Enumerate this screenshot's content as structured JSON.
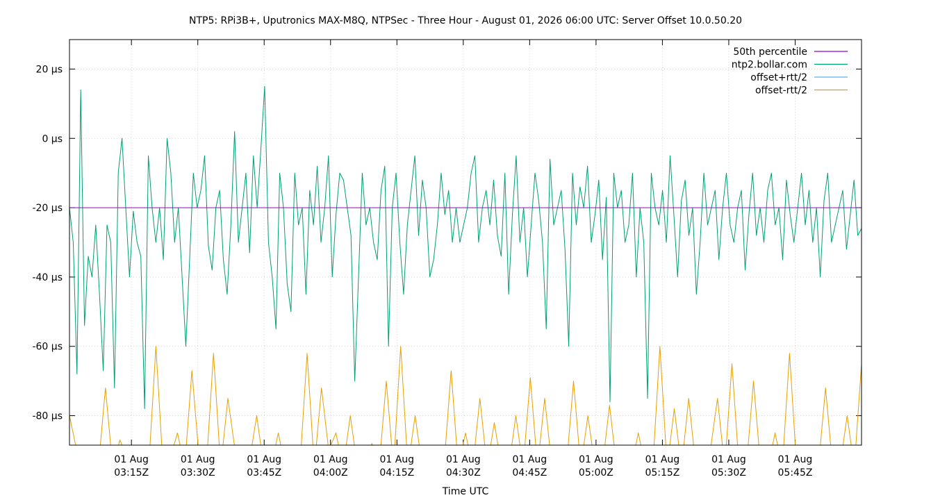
{
  "chart_data": {
    "type": "line",
    "title": "NTP5: RPi3B+, Uputronics MAX-M8Q, NTPSec - Three Hour - August 01, 2026 06:00 UTC: Server Offset 10.0.50.20",
    "xlabel": "Time UTC",
    "ylabel": "",
    "grid": true,
    "legend_position": "top-right",
    "x_range": [
      "2026-08-01T03:01Z",
      "2026-08-01T06:00Z"
    ],
    "ylim": [
      -88.5,
      28.5
    ],
    "y_unit": "µs",
    "y_ticks": [
      {
        "value": 20,
        "label": "20 µs"
      },
      {
        "value": 0,
        "label": "0 µs"
      },
      {
        "value": -20,
        "label": "-20 µs"
      },
      {
        "value": -40,
        "label": "-40 µs"
      },
      {
        "value": -60,
        "label": "-60 µs"
      },
      {
        "value": -80,
        "label": "-80 µs"
      }
    ],
    "x_ticks": [
      {
        "minutes": 15,
        "line1": "01 Aug",
        "line2": "03:15Z"
      },
      {
        "minutes": 30,
        "line1": "01 Aug",
        "line2": "03:30Z"
      },
      {
        "minutes": 45,
        "line1": "01 Aug",
        "line2": "03:45Z"
      },
      {
        "minutes": 60,
        "line1": "01 Aug",
        "line2": "04:00Z"
      },
      {
        "minutes": 75,
        "line1": "01 Aug",
        "line2": "04:15Z"
      },
      {
        "minutes": 90,
        "line1": "01 Aug",
        "line2": "04:30Z"
      },
      {
        "minutes": 105,
        "line1": "01 Aug",
        "line2": "04:45Z"
      },
      {
        "minutes": 120,
        "line1": "01 Aug",
        "line2": "05:00Z"
      },
      {
        "minutes": 135,
        "line1": "01 Aug",
        "line2": "05:15Z"
      },
      {
        "minutes": 150,
        "line1": "01 Aug",
        "line2": "05:30Z"
      },
      {
        "minutes": 165,
        "line1": "01 Aug",
        "line2": "05:45Z"
      }
    ],
    "series": [
      {
        "name": "50th percentile",
        "color": "#9400d3",
        "constant": -20
      },
      {
        "name": "ntp2.bollar.com",
        "color": "#009e73",
        "values": [
          -20,
          -30,
          -68,
          14,
          -54,
          -34,
          -40,
          -25,
          -45,
          -67,
          -25,
          -30,
          -72,
          -10,
          0,
          -20,
          -40,
          -21,
          -30,
          -34,
          -78,
          -5,
          -20,
          -30,
          -20,
          -35,
          0,
          -10,
          -30,
          -20,
          -40,
          -60,
          -35,
          -10,
          -20,
          -15,
          -5,
          -31,
          -38,
          -20,
          -15,
          -35,
          -45,
          -25,
          2,
          -30,
          -20,
          -10,
          -33,
          -5,
          -20,
          -3,
          15,
          -30,
          -40,
          -55,
          -10,
          -20,
          -42,
          -50,
          -10,
          -25,
          -20,
          -45,
          -15,
          -25,
          -8,
          -30,
          -20,
          -5,
          -40,
          -22,
          -10,
          -12,
          -20,
          -28,
          -70,
          -40,
          -10,
          -25,
          -20,
          -30,
          -35,
          -15,
          -8,
          -60,
          -20,
          -10,
          -30,
          -45,
          -25,
          -15,
          -5,
          -28,
          -12,
          -20,
          -40,
          -35,
          -25,
          -10,
          -22,
          -15,
          -30,
          -20,
          -30,
          -25,
          -20,
          -10,
          -5,
          -30,
          -20,
          -15,
          -25,
          -12,
          -28,
          -34,
          -10,
          -45,
          -22,
          -5,
          -30,
          -20,
          -40,
          -25,
          -10,
          -18,
          -30,
          -55,
          -6,
          -25,
          -20,
          -15,
          -32,
          -60,
          -10,
          -25,
          -14,
          -20,
          -8,
          -30,
          -22,
          -12,
          -35,
          -17,
          -76,
          -10,
          -20,
          -15,
          -30,
          -25,
          -10,
          -40,
          -20,
          -30,
          -75,
          -10,
          -20,
          -25,
          -15,
          -30,
          -5,
          -22,
          -40,
          -18,
          -12,
          -28,
          -20,
          -45,
          -30,
          -10,
          -25,
          -20,
          -15,
          -35,
          -20,
          -10,
          -25,
          -30,
          -20,
          -15,
          -38,
          -22,
          -10,
          -28,
          -20,
          -30,
          -15,
          -10,
          -25,
          -20,
          -35,
          -12,
          -22,
          -30,
          -20,
          -10,
          -25,
          -15,
          -30,
          -20,
          -40,
          -18,
          -10,
          -30,
          -25,
          -20,
          -15,
          -32,
          -22,
          -12,
          -28,
          -26
        ]
      },
      {
        "name": "offset+rtt/2",
        "color": "#56b4e9"
      },
      {
        "name": "offset-rtt/2",
        "color": "#e69f00",
        "values": [
          -80,
          -90,
          -95,
          -92,
          -95,
          -72,
          -95,
          -87,
          -92,
          -95,
          -90,
          -95,
          -60,
          -95,
          -92,
          -85,
          -95,
          -67,
          -92,
          -95,
          -62,
          -95,
          -75,
          -90,
          -95,
          -93,
          -80,
          -95,
          -95,
          -85,
          -95,
          -92,
          -95,
          -62,
          -95,
          -72,
          -90,
          -85,
          -95,
          -80,
          -95,
          -95,
          -88,
          -95,
          -70,
          -95,
          -60,
          -95,
          -80,
          -95,
          -95,
          -90,
          -95,
          -67,
          -95,
          -85,
          -95,
          -75,
          -95,
          -82,
          -95,
          -95,
          -80,
          -95,
          -69,
          -95,
          -75,
          -95,
          -90,
          -95,
          -70,
          -95,
          -80,
          -95,
          -95,
          -77,
          -95,
          -90,
          -95,
          -85,
          -95,
          -95,
          -60,
          -95,
          -78,
          -95,
          -75,
          -95,
          -95,
          -90,
          -75,
          -95,
          -65,
          -95,
          -95,
          -70,
          -95,
          -95,
          -85,
          -95,
          -62,
          -95,
          -95,
          -90,
          -95,
          -72,
          -95,
          -95,
          -80,
          -95,
          -65
        ]
      }
    ]
  }
}
